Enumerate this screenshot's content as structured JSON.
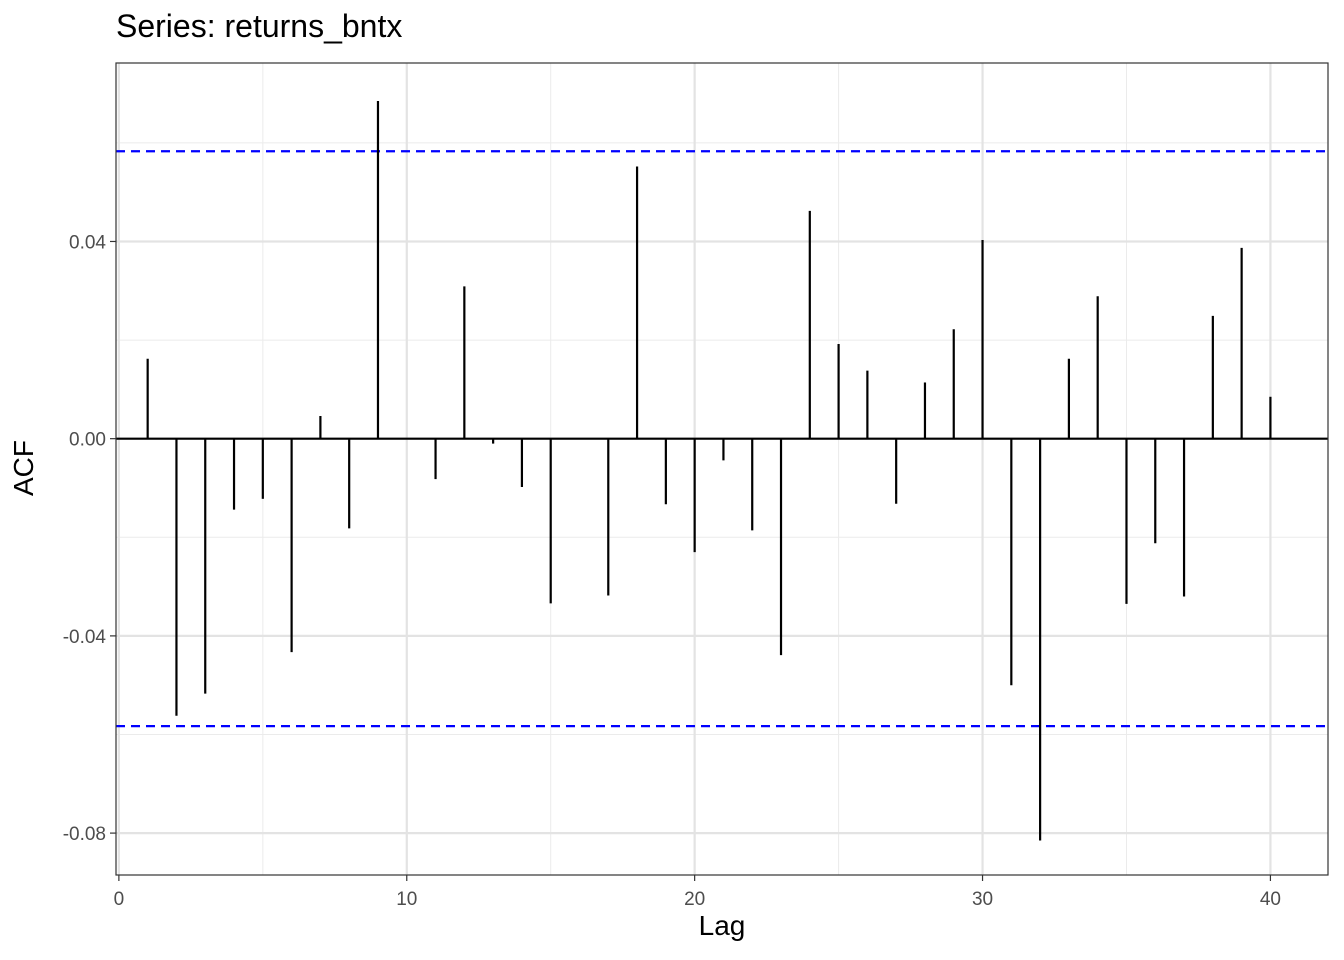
{
  "chart_data": {
    "type": "bar",
    "title": "Series: returns_bntx",
    "xlabel": "Lag",
    "ylabel": "ACF",
    "x_ticks": [
      0,
      10,
      20,
      30,
      40
    ],
    "y_ticks": [
      -0.08,
      -0.04,
      0.0,
      0.04
    ],
    "y_tick_labels": [
      "-0.08",
      "-0.04",
      "0.00",
      "0.04"
    ],
    "x_tick_labels": [
      "0",
      "10",
      "20",
      "30",
      "40"
    ],
    "xlim": [
      -0.1,
      42
    ],
    "ylim": [
      -0.0885,
      0.0762
    ],
    "grid": true,
    "confidence_bound": 0.0583,
    "confidence_line_color": "#0000ff",
    "lags": [
      1,
      2,
      3,
      4,
      5,
      6,
      7,
      8,
      9,
      10,
      11,
      12,
      13,
      14,
      15,
      16,
      17,
      18,
      19,
      20,
      21,
      22,
      23,
      24,
      25,
      26,
      27,
      28,
      29,
      30,
      31,
      32,
      33,
      34,
      35,
      36,
      37,
      38,
      39,
      40
    ],
    "values": [
      0.0162,
      -0.0562,
      -0.0517,
      -0.0144,
      -0.0122,
      -0.0433,
      0.0046,
      -0.0182,
      0.0685,
      0.0,
      -0.0082,
      0.0309,
      -0.001,
      -0.0098,
      -0.0334,
      0.0,
      -0.0318,
      0.0552,
      -0.0133,
      -0.023,
      -0.0044,
      -0.0186,
      -0.0439,
      0.0462,
      0.0192,
      0.0138,
      -0.0132,
      0.0114,
      0.0222,
      0.0403,
      -0.05,
      -0.0815,
      0.0162,
      0.0289,
      -0.0335,
      -0.0212,
      -0.032,
      0.0249,
      0.0387,
      0.0085
    ]
  }
}
